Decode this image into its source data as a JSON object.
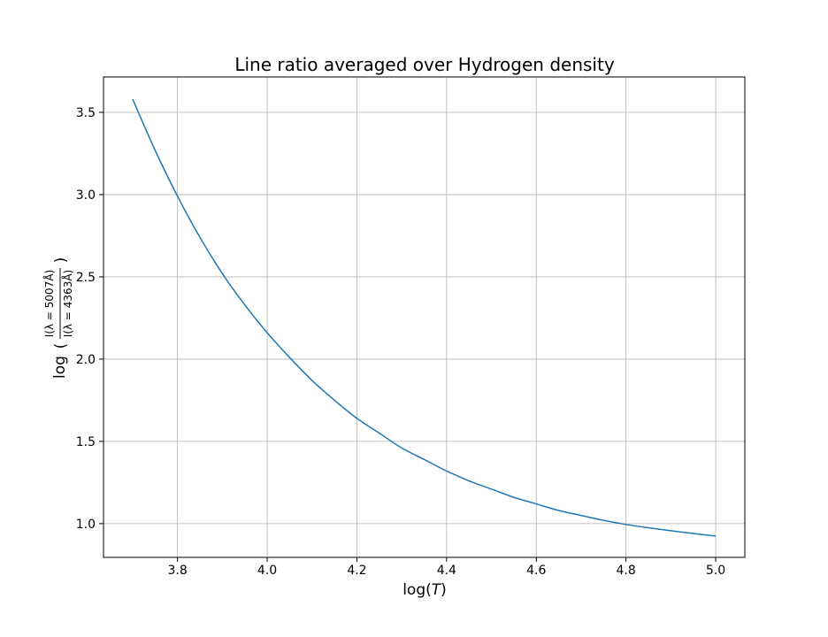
{
  "chart_data": {
    "type": "line",
    "title": "Line ratio averaged over Hydrogen density",
    "xlabel": {
      "prefix": "log(",
      "var": "T",
      "suffix": ")"
    },
    "ylabel": {
      "prefix": "log",
      "numerator": "I(λ = 5007Å)",
      "denominator": "I(λ = 4363Å)"
    },
    "xlim": [
      3.635,
      5.065
    ],
    "ylim": [
      0.795,
      3.715
    ],
    "xticks": [
      3.8,
      4.0,
      4.2,
      4.4,
      4.6,
      4.8,
      5.0
    ],
    "xtick_labels": [
      "3.8",
      "4.0",
      "4.2",
      "4.4",
      "4.6",
      "4.8",
      "5.0"
    ],
    "yticks": [
      1.0,
      1.5,
      2.0,
      2.5,
      3.0,
      3.5
    ],
    "ytick_labels": [
      "1.0",
      "1.5",
      "2.0",
      "2.5",
      "3.0",
      "3.5"
    ],
    "grid": true,
    "colors": {
      "line": "#1f77b4",
      "grid": "#b0b0b0",
      "frame": "#000000"
    },
    "series": [
      {
        "x": [
          3.7,
          3.75,
          3.8,
          3.85,
          3.9,
          3.95,
          4.0,
          4.05,
          4.1,
          4.15,
          4.2,
          4.25,
          4.3,
          4.35,
          4.4,
          4.45,
          4.5,
          4.55,
          4.6,
          4.65,
          4.7,
          4.75,
          4.8,
          4.85,
          4.9,
          4.95,
          5.0
        ],
        "y": [
          3.58,
          3.27,
          2.99,
          2.74,
          2.52,
          2.33,
          2.16,
          2.01,
          1.87,
          1.75,
          1.64,
          1.55,
          1.46,
          1.39,
          1.32,
          1.26,
          1.21,
          1.16,
          1.12,
          1.08,
          1.05,
          1.02,
          0.995,
          0.975,
          0.957,
          0.94,
          0.925
        ]
      }
    ]
  }
}
